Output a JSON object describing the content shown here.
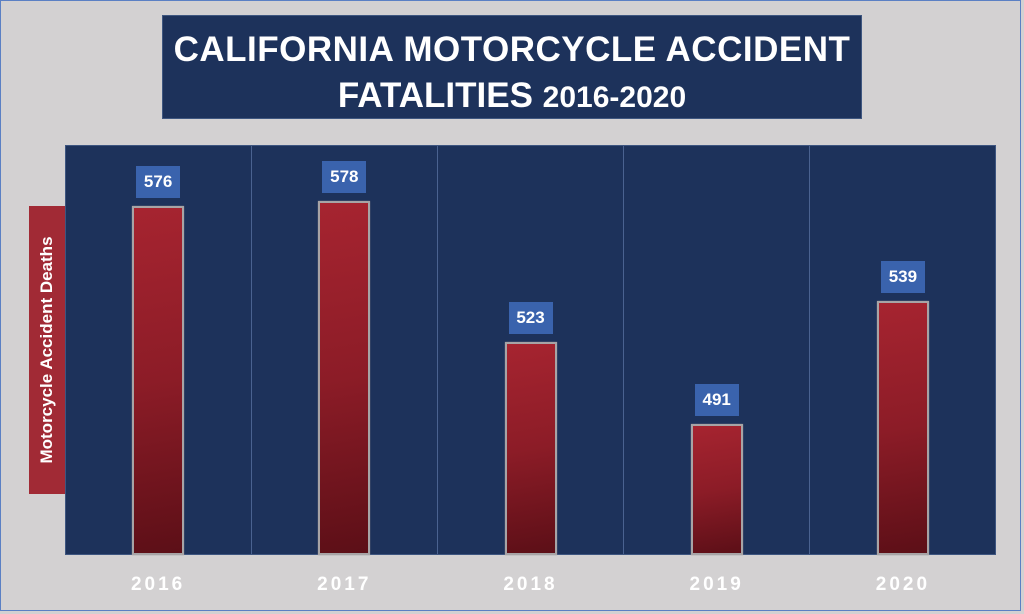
{
  "title": {
    "line1": "CALIFORNIA MOTORCYCLE ACCIDENT",
    "line2_text": "FATALITIES",
    "line2_years": "2016-2020"
  },
  "y_axis_label": "Motorcycle Accident Deaths",
  "colors": {
    "background": "#d3d1d2",
    "plot_background": "#1d325b",
    "bar": "#a62430",
    "bar_dark": "#5c0f17",
    "label_box": "#3a63ad",
    "ylabel_box": "#a12a35"
  },
  "bars": [
    {
      "year": "2016",
      "value": "576"
    },
    {
      "year": "2017",
      "value": "578"
    },
    {
      "year": "2018",
      "value": "523"
    },
    {
      "year": "2019",
      "value": "491"
    },
    {
      "year": "2020",
      "value": "539"
    }
  ],
  "chart_data": {
    "type": "bar",
    "title": "CALIFORNIA MOTORCYCLE ACCIDENT FATALITIES 2016-2020",
    "categories": [
      "2016",
      "2017",
      "2018",
      "2019",
      "2020"
    ],
    "values": [
      576,
      578,
      523,
      491,
      539
    ],
    "xlabel": "",
    "ylabel": "Motorcycle Accident Deaths",
    "ylim": [
      440,
      600
    ],
    "grid": false,
    "data_labels": true,
    "legend": null
  }
}
